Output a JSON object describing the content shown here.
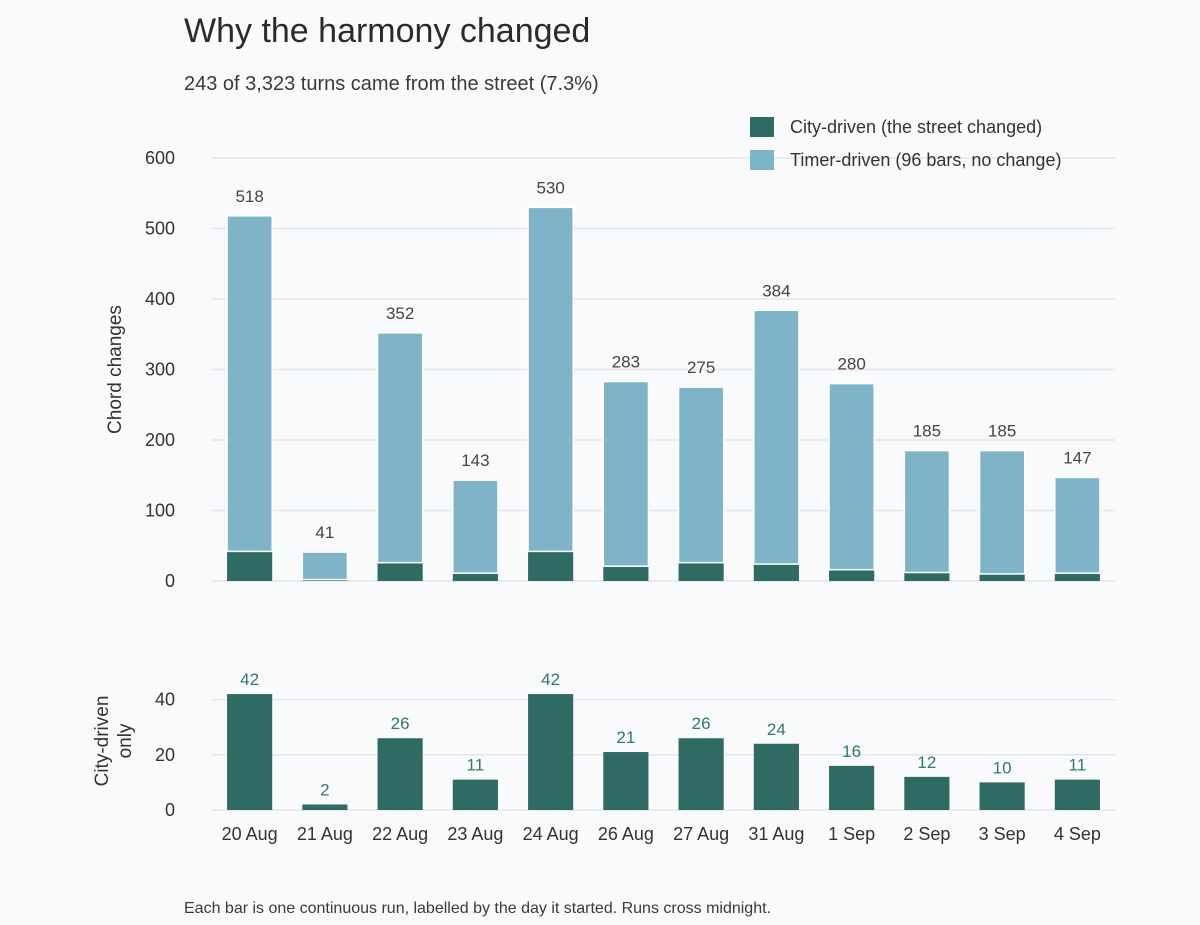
{
  "chart_data": {
    "type": "bar",
    "title": "Why the harmony changed",
    "subtitle": "243 of 3,323 turns came from the street (7.3%)",
    "footnote": "Each bar is one continuous run, labelled by the day it started. Runs cross midnight.",
    "categories": [
      "20 Aug",
      "21 Aug",
      "22 Aug",
      "23 Aug",
      "24 Aug",
      "26 Aug",
      "27 Aug",
      "31 Aug",
      "1 Sep",
      "2 Sep",
      "3 Sep",
      "4 Sep"
    ],
    "colors": {
      "city": "#2f6b62",
      "timer": "#7fb3c8",
      "grid": "#e2e6ea"
    },
    "legend_position": "top-right",
    "grid": true,
    "panels": [
      {
        "name": "main",
        "type": "stacked-bar",
        "ylabel": "Chord changes",
        "ylim": [
          0,
          600
        ],
        "yticks": [
          0,
          100,
          200,
          300,
          400,
          500,
          600
        ],
        "series": [
          {
            "name": "City-driven (the street changed)",
            "key": "city",
            "values": [
              42,
              2,
              26,
              11,
              42,
              21,
              26,
              24,
              16,
              12,
              10,
              11
            ]
          },
          {
            "name": "Timer-driven (96 bars, no change)",
            "key": "timer",
            "values": [
              476,
              39,
              326,
              132,
              488,
              262,
              249,
              360,
              264,
              173,
              175,
              136
            ]
          }
        ],
        "totals": [
          518,
          41,
          352,
          143,
          530,
          283,
          275,
          384,
          280,
          185,
          185,
          147
        ]
      },
      {
        "name": "city-only",
        "type": "bar",
        "ylabel_lines": [
          "City-driven",
          "only"
        ],
        "ylim": [
          0,
          50
        ],
        "yticks": [
          0,
          20,
          40
        ],
        "values": [
          42,
          2,
          26,
          11,
          42,
          21,
          26,
          24,
          16,
          12,
          10,
          11
        ]
      }
    ]
  }
}
